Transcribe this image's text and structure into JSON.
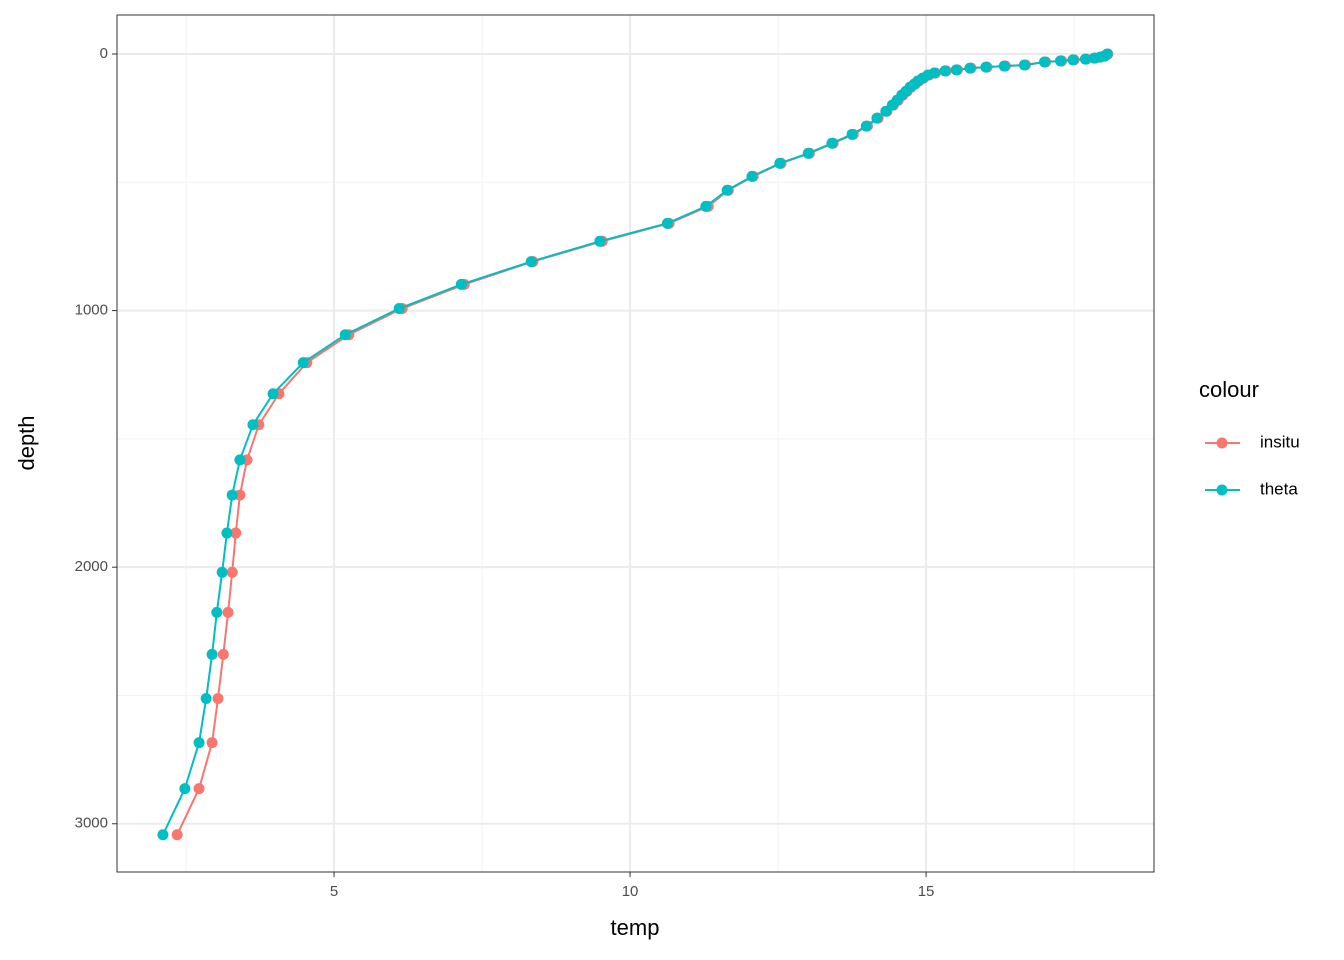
{
  "chart_data": {
    "type": "line",
    "x_label": "temp",
    "y_label": "depth",
    "legend_title": "colour",
    "legend": "right",
    "grid": true,
    "y_reversed": true,
    "xlim": [
      1.334,
      18.85
    ],
    "ylim": [
      -152,
      3188
    ],
    "xticks": [
      5,
      10,
      15
    ],
    "yticks": [
      0,
      1000,
      2000,
      3000
    ],
    "x_minor_grid": [
      2.5,
      7.5,
      12.5,
      17.5
    ],
    "y_minor_grid": [
      500,
      1500,
      2500
    ],
    "series": [
      {
        "name": "insitu",
        "color": "#F8766D",
        "x": [
          2.35,
          2.72,
          2.94,
          3.04,
          3.13,
          3.21,
          3.28,
          3.34,
          3.41,
          3.53,
          3.73,
          4.07,
          4.54,
          5.25,
          6.15,
          7.2,
          8.36,
          9.53,
          10.66,
          11.32,
          11.66,
          12.08,
          12.55,
          13.03,
          13.43,
          13.77,
          14.01,
          14.19,
          14.34,
          14.45,
          14.53,
          14.61,
          14.68,
          14.75,
          14.82,
          14.88,
          14.96,
          15.05,
          15.16,
          15.34,
          15.53,
          15.76,
          16.03,
          16.34,
          16.68,
          17.02,
          17.29,
          17.5,
          17.71,
          17.86,
          17.95,
          18.02,
          18.07
        ],
        "y": [
          3043,
          2863,
          2684,
          2512,
          2340,
          2176,
          2020,
          1867,
          1719,
          1582,
          1445,
          1324,
          1203,
          1094,
          992,
          898,
          809,
          730,
          660,
          594,
          531,
          477,
          426,
          387,
          348,
          313,
          281,
          250,
          223,
          199,
          180,
          160,
          145,
          129,
          117,
          105,
          94,
          82,
          74,
          66,
          62,
          55,
          51,
          47,
          43,
          31,
          27,
          23,
          20,
          16,
          12,
          8,
          0
        ]
      },
      {
        "name": "theta",
        "color": "#00BFC4",
        "x": [
          2.11,
          2.48,
          2.72,
          2.84,
          2.94,
          3.02,
          3.11,
          3.19,
          3.28,
          3.41,
          3.63,
          3.97,
          4.48,
          5.19,
          6.1,
          7.15,
          8.33,
          9.49,
          10.63,
          11.28,
          11.64,
          12.06,
          12.53,
          13.01,
          13.41,
          13.75,
          13.99,
          14.17,
          14.32,
          14.43,
          14.51,
          14.59,
          14.66,
          14.73,
          14.8,
          14.86,
          14.94,
          15.03,
          15.14,
          15.32,
          15.51,
          15.74,
          16.01,
          16.32,
          16.66,
          17.0,
          17.27,
          17.48,
          17.69,
          17.84,
          17.94,
          18.01,
          18.06
        ],
        "y": [
          3043,
          2863,
          2684,
          2512,
          2340,
          2176,
          2020,
          1867,
          1719,
          1582,
          1445,
          1324,
          1203,
          1094,
          992,
          898,
          809,
          730,
          660,
          594,
          531,
          477,
          426,
          387,
          348,
          313,
          281,
          250,
          223,
          199,
          180,
          160,
          145,
          129,
          117,
          105,
          94,
          82,
          74,
          66,
          62,
          55,
          51,
          47,
          43,
          31,
          27,
          23,
          20,
          16,
          12,
          8,
          0
        ]
      }
    ]
  }
}
